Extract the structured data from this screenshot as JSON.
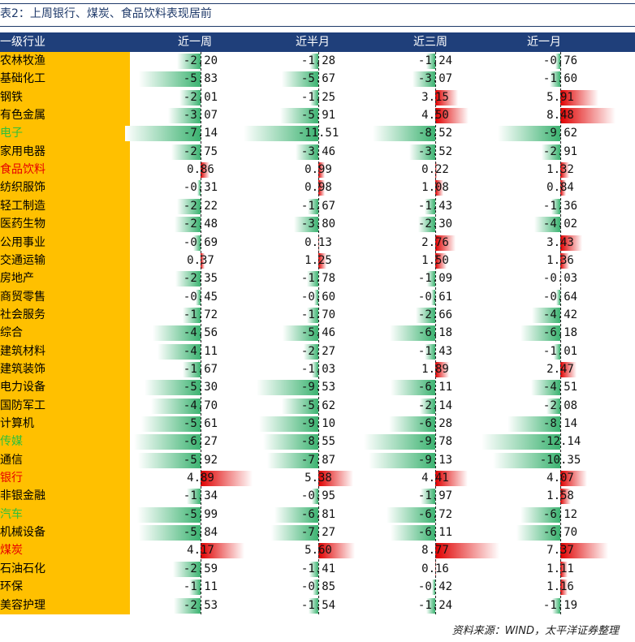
{
  "title": "表2：上周银行、煤炭、食品饮料表现居前",
  "header": {
    "industry": "一级行业",
    "columns": [
      "近一周",
      "近半月",
      "近三周",
      "近一月"
    ]
  },
  "source": "资料来源：WIND，太平洋证券整理",
  "colors": {
    "header_bg": "#1f3f7a",
    "name_bg": "#ffc000",
    "negative_bar": "#3cb371",
    "positive_bar": "#e00000",
    "highlight_green": "#2fbf3a",
    "highlight_red": "#e60000"
  },
  "rows": [
    {
      "name": "农林牧渔",
      "color": "black",
      "values": [
        "-2.20",
        "-1.28",
        "-1.24",
        "-0.76"
      ]
    },
    {
      "name": "基础化工",
      "color": "black",
      "values": [
        "-5.83",
        "-5.67",
        "-3.07",
        "-1.60"
      ]
    },
    {
      "name": "钢铁",
      "color": "black",
      "values": [
        "-2.01",
        "-1.25",
        "3.15",
        "5.91"
      ]
    },
    {
      "name": "有色金属",
      "color": "black",
      "values": [
        "-3.07",
        "-5.91",
        "4.50",
        "8.48"
      ]
    },
    {
      "name": "电子",
      "color": "green",
      "values": [
        "-7.14",
        "-11.51",
        "-8.52",
        "-9.62"
      ]
    },
    {
      "name": "家用电器",
      "color": "black",
      "values": [
        "-2.75",
        "-3.46",
        "-3.52",
        "-2.91"
      ]
    },
    {
      "name": "食品饮料",
      "color": "red",
      "values": [
        "0.86",
        "0.99",
        "0.22",
        "1.32"
      ]
    },
    {
      "name": "纺织服饰",
      "color": "black",
      "values": [
        "-0.31",
        "0.98",
        "1.08",
        "0.84"
      ]
    },
    {
      "name": "轻工制造",
      "color": "black",
      "values": [
        "-2.22",
        "-1.67",
        "-1.43",
        "-1.36"
      ]
    },
    {
      "name": "医药生物",
      "color": "black",
      "values": [
        "-2.48",
        "-3.80",
        "-2.30",
        "-4.02"
      ]
    },
    {
      "name": "公用事业",
      "color": "black",
      "values": [
        "-0.69",
        "0.13",
        "2.76",
        "3.43"
      ]
    },
    {
      "name": "交通运输",
      "color": "black",
      "values": [
        "0.37",
        "1.25",
        "1.50",
        "1.36"
      ]
    },
    {
      "name": "房地产",
      "color": "black",
      "values": [
        "-2.35",
        "-1.78",
        "-1.09",
        "-0.03"
      ]
    },
    {
      "name": "商贸零售",
      "color": "black",
      "values": [
        "-0.45",
        "-0.60",
        "-0.61",
        "-0.64"
      ]
    },
    {
      "name": "社会服务",
      "color": "black",
      "values": [
        "-1.72",
        "-1.70",
        "-2.66",
        "-4.42"
      ]
    },
    {
      "name": "综合",
      "color": "black",
      "values": [
        "-4.56",
        "-5.46",
        "-6.18",
        "-6.18"
      ]
    },
    {
      "name": "建筑材料",
      "color": "black",
      "values": [
        "-4.11",
        "-2.27",
        "-1.43",
        "-1.01"
      ]
    },
    {
      "name": "建筑装饰",
      "color": "black",
      "values": [
        "-1.67",
        "-1.03",
        "1.89",
        "2.47"
      ]
    },
    {
      "name": "电力设备",
      "color": "black",
      "values": [
        "-5.30",
        "-9.53",
        "-6.11",
        "-4.51"
      ]
    },
    {
      "name": "国防军工",
      "color": "black",
      "values": [
        "-4.70",
        "-5.62",
        "-2.14",
        "-2.08"
      ]
    },
    {
      "name": "计算机",
      "color": "black",
      "values": [
        "-5.61",
        "-9.10",
        "-6.28",
        "-8.14"
      ]
    },
    {
      "name": "传媒",
      "color": "green",
      "values": [
        "-6.27",
        "-8.55",
        "-9.78",
        "-12.14"
      ]
    },
    {
      "name": "通信",
      "color": "black",
      "values": [
        "-5.92",
        "-7.87",
        "-9.13",
        "-10.35"
      ]
    },
    {
      "name": "银行",
      "color": "red",
      "values": [
        "4.89",
        "5.38",
        "4.41",
        "4.07"
      ]
    },
    {
      "name": "非银金融",
      "color": "black",
      "values": [
        "-1.34",
        "-0.95",
        "-1.97",
        "1.58"
      ]
    },
    {
      "name": "汽车",
      "color": "green",
      "values": [
        "-5.99",
        "-6.81",
        "-6.72",
        "-6.12"
      ]
    },
    {
      "name": "机械设备",
      "color": "black",
      "values": [
        "-5.84",
        "-7.27",
        "-6.11",
        "-6.70"
      ]
    },
    {
      "name": "煤炭",
      "color": "red",
      "values": [
        "4.17",
        "5.60",
        "8.77",
        "7.37"
      ]
    },
    {
      "name": "石油石化",
      "color": "black",
      "values": [
        "-2.59",
        "-1.41",
        "0.16",
        "1.11"
      ]
    },
    {
      "name": "环保",
      "color": "black",
      "values": [
        "-1.11",
        "-0.85",
        "-0.42",
        "1.16"
      ]
    },
    {
      "name": "美容护理",
      "color": "black",
      "values": [
        "-2.53",
        "-1.54",
        "-1.24",
        "-1.19"
      ]
    }
  ]
}
